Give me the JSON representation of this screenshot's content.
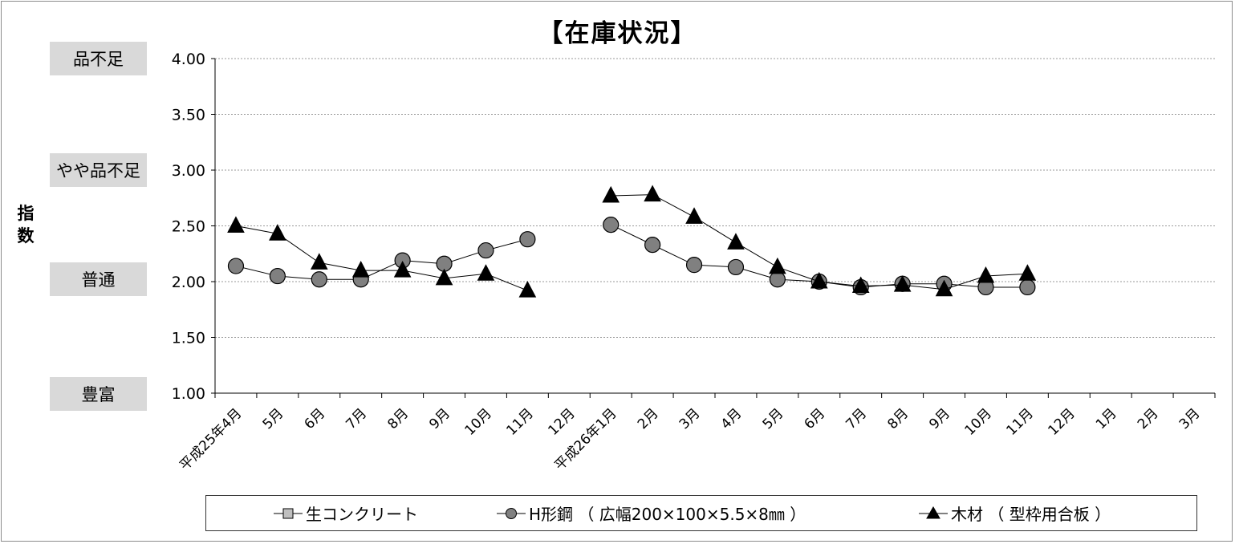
{
  "title": "【在庫状況】",
  "ylabel": "指数",
  "bands": [
    {
      "label": "品不足",
      "value": 4.0
    },
    {
      "label": "やや品不足",
      "value": 3.0
    },
    {
      "label": "普通",
      "value": 2.0
    },
    {
      "label": "豊富",
      "value": 1.0
    }
  ],
  "legend": [
    {
      "label": "生コンクリート",
      "marker": "square"
    },
    {
      "label": "H形鋼 （ 広幅200×100×5.5×8㎜ ）",
      "marker": "circle"
    },
    {
      "label": "木材 （ 型枠用合板 ）",
      "marker": "triangle"
    }
  ],
  "chart_data": {
    "type": "line",
    "title": "【在庫状況】",
    "ylabel": "指数",
    "ylim": [
      1.0,
      4.0
    ],
    "yticks": [
      "1.00",
      "1.50",
      "2.00",
      "2.50",
      "3.00",
      "3.50",
      "4.00"
    ],
    "grid": true,
    "legend_position": "bottom",
    "categories": [
      "平成25年4月",
      "5月",
      "6月",
      "7月",
      "8月",
      "9月",
      "10月",
      "11月",
      "12月",
      "平成26年1月",
      "2月",
      "3月",
      "4月",
      "5月",
      "6月",
      "7月",
      "8月",
      "9月",
      "10月",
      "11月",
      "12月",
      "1月",
      "2月",
      "3月"
    ],
    "series": [
      {
        "name": "生コンクリート",
        "marker": "square",
        "color": "#bfbfbf",
        "values": [
          null,
          null,
          null,
          null,
          null,
          null,
          null,
          null,
          null,
          null,
          null,
          null,
          null,
          null,
          null,
          null,
          null,
          null,
          null,
          null,
          null,
          null,
          null,
          null
        ]
      },
      {
        "name": "H形鋼 （ 広幅200×100×5.5×8㎜ ）",
        "marker": "circle",
        "color": "#808080",
        "values": [
          2.14,
          2.05,
          2.02,
          2.02,
          2.19,
          2.16,
          2.28,
          2.38,
          null,
          2.51,
          2.33,
          2.15,
          2.13,
          2.02,
          2.0,
          1.95,
          1.98,
          1.98,
          1.95,
          1.95,
          null,
          null,
          null,
          null
        ]
      },
      {
        "name": "木材 （ 型枠用合板 ）",
        "marker": "triangle",
        "color": "#000000",
        "values": [
          2.5,
          2.43,
          2.17,
          2.1,
          2.1,
          2.03,
          2.07,
          1.92,
          null,
          2.77,
          2.78,
          2.58,
          2.35,
          2.13,
          2.0,
          1.96,
          1.97,
          1.93,
          2.05,
          2.07,
          null,
          null,
          null,
          null
        ]
      }
    ]
  }
}
